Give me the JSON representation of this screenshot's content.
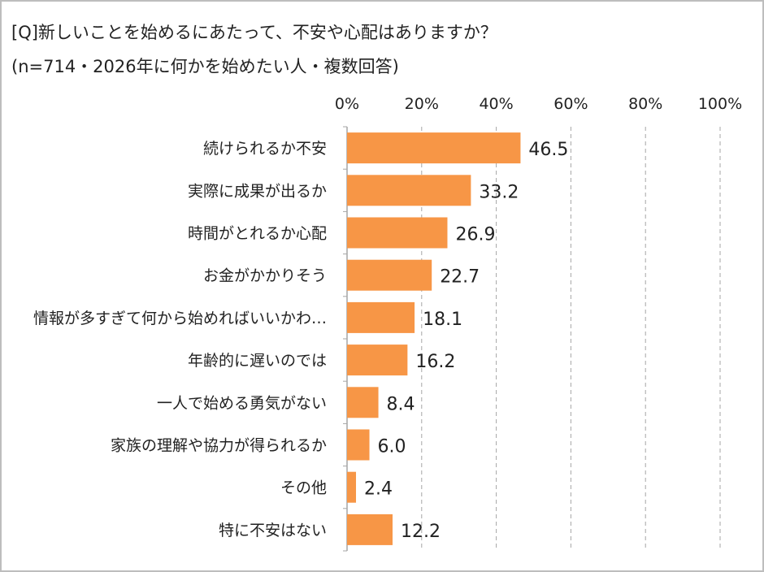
{
  "chart_data": {
    "type": "bar",
    "orientation": "horizontal",
    "title": "[Q]新しいことを始めるにあたって、不安や心配はありますか？",
    "subtitle": "(n=714・2026年に何かを始めたい人・複数回答)",
    "categories": [
      "続けられるか不安",
      "実際に成果が出るか",
      "時間がとれるか心配",
      "お金がかかりそう",
      "情報が多すぎて何から始めればいいかわ…",
      "年齢的に遅いのでは",
      "一人で始める勇気がない",
      "家族の理解や協力が得られるか",
      "その他",
      "特に不安はない"
    ],
    "values": [
      46.5,
      33.2,
      26.9,
      22.7,
      18.1,
      16.2,
      8.4,
      6.0,
      2.4,
      12.2
    ],
    "value_labels": [
      "46.5",
      "33.2",
      "26.9",
      "22.7",
      "18.1",
      "16.2",
      "8.4",
      "6.0",
      "2.4",
      "12.2"
    ],
    "xlim": [
      0,
      100
    ],
    "xticks": [
      "0%",
      "20%",
      "40%",
      "60%",
      "80%",
      "100%"
    ],
    "xtick_position": "top",
    "grid": "vertical dashed",
    "bar_color": "#F79646"
  }
}
